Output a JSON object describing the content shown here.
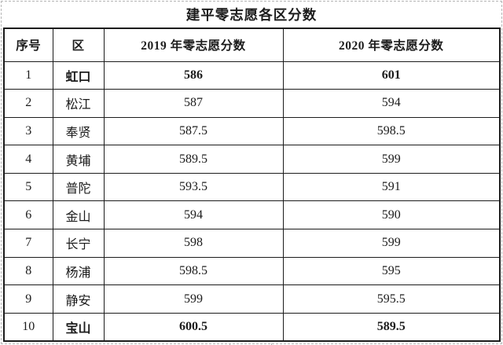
{
  "title": "建平零志愿各区分数",
  "table": {
    "headers": [
      "序号",
      "区",
      "2019 年零志愿分数",
      "2020 年零志愿分数"
    ],
    "rows": [
      {
        "no": "1",
        "district": "虹口",
        "score_2019": "586",
        "score_2020": "601",
        "bold": true
      },
      {
        "no": "2",
        "district": "松江",
        "score_2019": "587",
        "score_2020": "594",
        "bold": false
      },
      {
        "no": "3",
        "district": "奉贤",
        "score_2019": "587.5",
        "score_2020": "598.5",
        "bold": false
      },
      {
        "no": "4",
        "district": "黄埔",
        "score_2019": "589.5",
        "score_2020": "599",
        "bold": false
      },
      {
        "no": "5",
        "district": "普陀",
        "score_2019": "593.5",
        "score_2020": "591",
        "bold": false
      },
      {
        "no": "6",
        "district": "金山",
        "score_2019": "594",
        "score_2020": "590",
        "bold": false
      },
      {
        "no": "7",
        "district": "长宁",
        "score_2019": "598",
        "score_2020": "599",
        "bold": false
      },
      {
        "no": "8",
        "district": "杨浦",
        "score_2019": "598.5",
        "score_2020": "595",
        "bold": false
      },
      {
        "no": "9",
        "district": "静安",
        "score_2019": "599",
        "score_2020": "595.5",
        "bold": false
      },
      {
        "no": "10",
        "district": "宝山",
        "score_2019": "600.5",
        "score_2020": "589.5",
        "bold": true
      }
    ]
  },
  "chart_data": {
    "type": "table",
    "title": "建平零志愿各区分数",
    "columns": [
      "序号",
      "区",
      "2019 年零志愿分数",
      "2020 年零志愿分数"
    ],
    "rows": [
      [
        "1",
        "虹口",
        "586",
        "601"
      ],
      [
        "2",
        "松江",
        "587",
        "594"
      ],
      [
        "3",
        "奉贤",
        "587.5",
        "598.5"
      ],
      [
        "4",
        "黄埔",
        "589.5",
        "599"
      ],
      [
        "5",
        "普陀",
        "593.5",
        "591"
      ],
      [
        "6",
        "金山",
        "594",
        "590"
      ],
      [
        "7",
        "长宁",
        "598",
        "599"
      ],
      [
        "8",
        "杨浦",
        "598.5",
        "595"
      ],
      [
        "9",
        "静安",
        "599",
        "595.5"
      ],
      [
        "10",
        "宝山",
        "600.5",
        "589.5"
      ]
    ]
  },
  "colors": {
    "border": "#1c1c1c",
    "text": "#1c1c1c",
    "dashed_gridline": "#b5b5b5",
    "background": "#ffffff"
  }
}
